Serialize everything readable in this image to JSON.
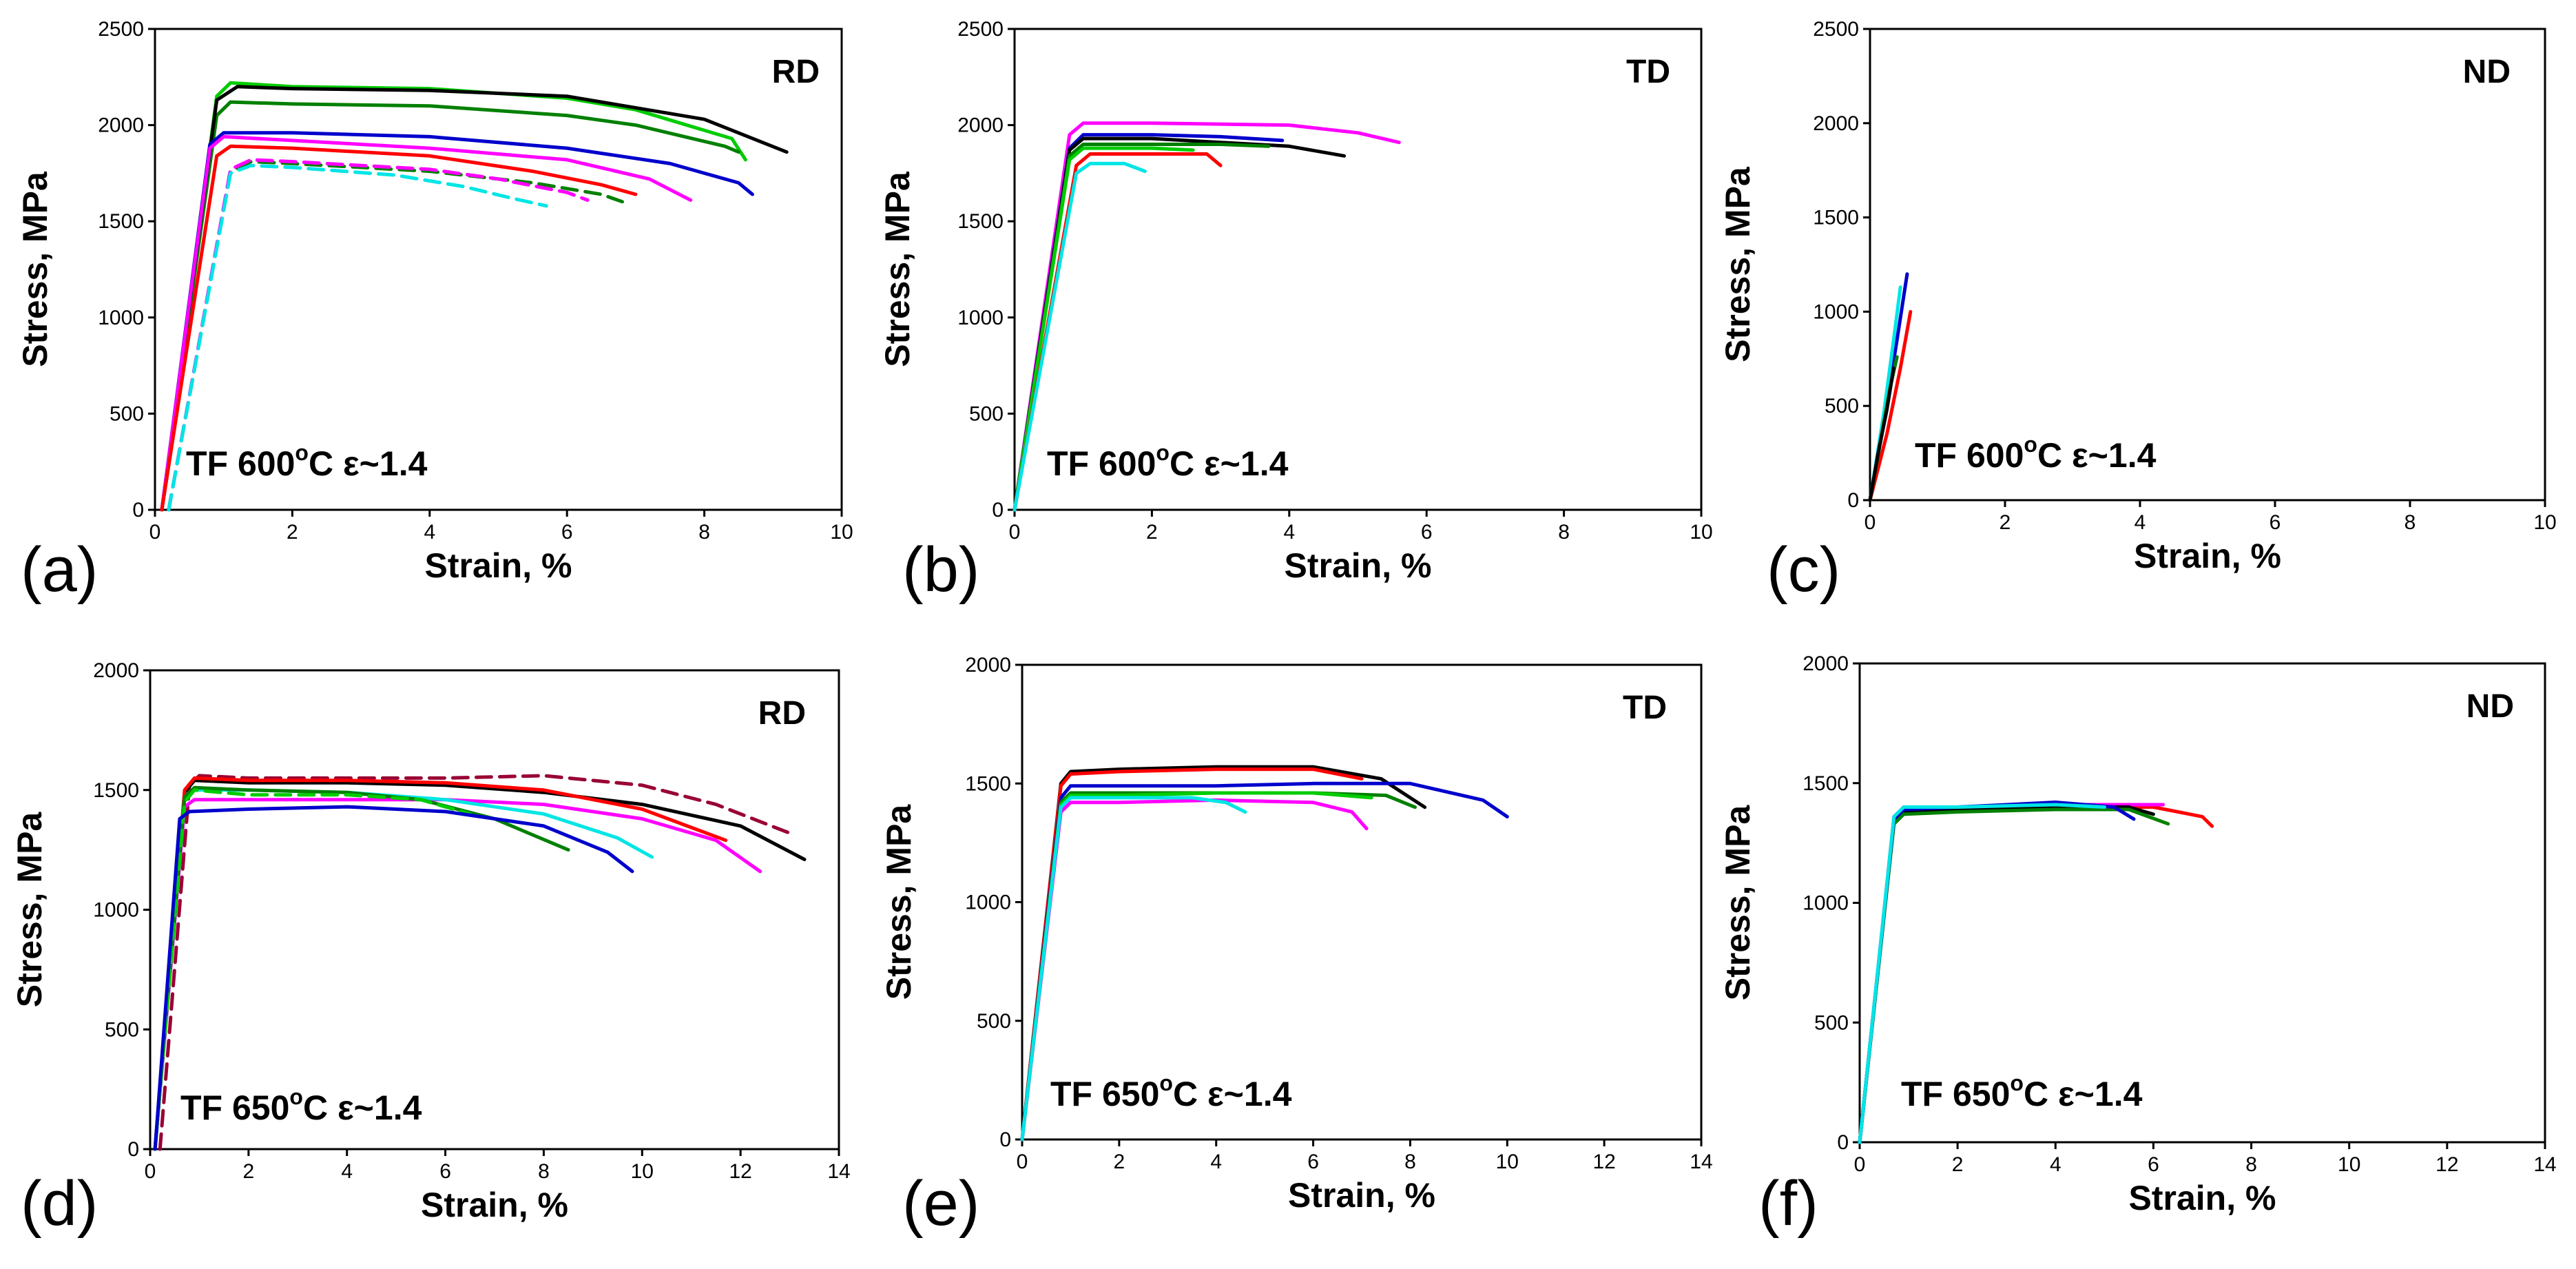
{
  "chart_data": [
    {
      "type": "line",
      "panel_label": "(a)",
      "direction": "RD",
      "condition": {
        "prefix": "TF 600",
        "sup": "o",
        "suffix": "C ε~1.4"
      },
      "xlabel": "Strain, %",
      "ylabel": "Stress, MPa",
      "xlim": [
        0,
        10
      ],
      "ylim": [
        0,
        2500
      ],
      "xticks": [
        0,
        2,
        4,
        6,
        8,
        10
      ],
      "yticks": [
        0,
        500,
        1000,
        1500,
        2000,
        2500
      ],
      "series": [
        {
          "color": "#00cc00",
          "dash": false,
          "x": [
            0.1,
            0.9,
            1.1,
            2,
            4,
            6,
            7,
            8.4,
            8.6
          ],
          "y": [
            0,
            2150,
            2220,
            2200,
            2190,
            2140,
            2080,
            1930,
            1820
          ]
        },
        {
          "color": "#008000",
          "dash": false,
          "x": [
            0.1,
            0.9,
            1.1,
            2,
            4,
            6,
            7,
            8.3,
            8.5
          ],
          "y": [
            0,
            2050,
            2120,
            2110,
            2100,
            2050,
            2000,
            1890,
            1860
          ]
        },
        {
          "color": "#000000",
          "dash": false,
          "x": [
            0.1,
            0.9,
            1.2,
            2,
            4,
            6,
            8,
            9.2
          ],
          "y": [
            0,
            2130,
            2200,
            2190,
            2180,
            2150,
            2030,
            1860
          ]
        },
        {
          "color": "#0000cc",
          "dash": false,
          "x": [
            0.1,
            0.8,
            1.0,
            2,
            4,
            6,
            7.5,
            8.5,
            8.7
          ],
          "y": [
            0,
            1900,
            1960,
            1960,
            1940,
            1880,
            1800,
            1700,
            1640
          ]
        },
        {
          "color": "#ff00ff",
          "dash": false,
          "x": [
            0.1,
            0.8,
            1.0,
            2,
            4,
            6,
            7.2,
            7.8
          ],
          "y": [
            0,
            1880,
            1940,
            1920,
            1880,
            1820,
            1720,
            1610
          ]
        },
        {
          "color": "#ff0000",
          "dash": false,
          "x": [
            0.1,
            0.9,
            1.1,
            2,
            4,
            5.5,
            6.5,
            7.0
          ],
          "y": [
            0,
            1840,
            1890,
            1880,
            1840,
            1760,
            1690,
            1640
          ]
        },
        {
          "color": "#008000",
          "dash": true,
          "x": [
            0.2,
            1.1,
            1.4,
            2,
            4,
            5.5,
            6.5,
            6.9
          ],
          "y": [
            0,
            1760,
            1810,
            1800,
            1760,
            1700,
            1640,
            1590
          ]
        },
        {
          "color": "#ff00ff",
          "dash": true,
          "x": [
            0.2,
            1.1,
            1.4,
            2,
            4,
            5,
            6,
            6.3
          ],
          "y": [
            0,
            1770,
            1820,
            1810,
            1770,
            1720,
            1650,
            1610
          ]
        },
        {
          "color": "#00e5e5",
          "dash": true,
          "x": [
            0.2,
            1.1,
            1.4,
            2,
            3.5,
            4.5,
            5.2,
            5.7
          ],
          "y": [
            0,
            1750,
            1790,
            1780,
            1740,
            1680,
            1620,
            1580
          ]
        }
      ]
    },
    {
      "type": "line",
      "panel_label": "(b)",
      "direction": "TD",
      "condition": {
        "prefix": "TF 600",
        "sup": "o",
        "suffix": "C ε~1.4"
      },
      "xlabel": "Strain, %",
      "ylabel": "Stress, MPa",
      "xlim": [
        0,
        10
      ],
      "ylim": [
        0,
        2500
      ],
      "xticks": [
        0,
        2,
        4,
        6,
        8,
        10
      ],
      "yticks": [
        0,
        500,
        1000,
        1500,
        2000,
        2500
      ],
      "series": [
        {
          "color": "#ff00ff",
          "dash": false,
          "x": [
            0,
            0.8,
            1.0,
            2,
            4,
            5,
            5.6
          ],
          "y": [
            0,
            1950,
            2010,
            2010,
            2000,
            1960,
            1910
          ]
        },
        {
          "color": "#0000cc",
          "dash": false,
          "x": [
            0,
            0.8,
            1.0,
            2,
            3,
            3.9
          ],
          "y": [
            0,
            1880,
            1950,
            1950,
            1940,
            1920
          ]
        },
        {
          "color": "#000000",
          "dash": false,
          "x": [
            0,
            0.8,
            1.0,
            2,
            3,
            4.0,
            4.8
          ],
          "y": [
            0,
            1870,
            1930,
            1930,
            1910,
            1890,
            1840
          ]
        },
        {
          "color": "#008000",
          "dash": false,
          "x": [
            0,
            0.8,
            1.0,
            2,
            3,
            3.7
          ],
          "y": [
            0,
            1840,
            1900,
            1900,
            1900,
            1890
          ]
        },
        {
          "color": "#00cc00",
          "dash": false,
          "x": [
            0,
            0.8,
            1.0,
            2,
            2.6
          ],
          "y": [
            0,
            1820,
            1880,
            1880,
            1870
          ]
        },
        {
          "color": "#ff0000",
          "dash": false,
          "x": [
            0,
            0.9,
            1.1,
            2,
            2.8,
            3.0
          ],
          "y": [
            0,
            1790,
            1850,
            1850,
            1850,
            1790
          ]
        },
        {
          "color": "#00e5e5",
          "dash": false,
          "x": [
            0,
            0.9,
            1.1,
            1.6,
            1.9
          ],
          "y": [
            0,
            1750,
            1800,
            1800,
            1760
          ]
        }
      ]
    },
    {
      "type": "line",
      "panel_label": "(c)",
      "direction": "ND",
      "condition": {
        "prefix": "TF 600",
        "sup": "o",
        "suffix": "C ε~1.4"
      },
      "xlabel": "Strain, %",
      "ylabel": "Stress, MPa",
      "xlim": [
        0,
        10
      ],
      "ylim": [
        0,
        2500
      ],
      "xticks": [
        0,
        2,
        4,
        6,
        8,
        10
      ],
      "yticks": [
        0,
        500,
        1000,
        1500,
        2000,
        2500
      ],
      "series": [
        {
          "color": "#0000cc",
          "dash": false,
          "x": [
            0,
            0.2,
            0.4,
            0.55
          ],
          "y": [
            0,
            400,
            850,
            1200
          ]
        },
        {
          "color": "#00e5e5",
          "dash": false,
          "x": [
            0,
            0.2,
            0.35,
            0.45
          ],
          "y": [
            0,
            450,
            850,
            1130
          ]
        },
        {
          "color": "#ff0000",
          "dash": false,
          "x": [
            0,
            0.25,
            0.45,
            0.6
          ],
          "y": [
            0,
            350,
            700,
            1000
          ]
        },
        {
          "color": "#008000",
          "dash": false,
          "x": [
            0,
            0.15,
            0.3,
            0.4
          ],
          "y": [
            0,
            300,
            600,
            760
          ]
        },
        {
          "color": "#000000",
          "dash": false,
          "x": [
            0,
            0.12,
            0.25,
            0.35
          ],
          "y": [
            0,
            250,
            480,
            700
          ]
        }
      ]
    },
    {
      "type": "line",
      "panel_label": "(d)",
      "direction": "RD",
      "condition": {
        "prefix": "TF 650",
        "sup": "o",
        "suffix": "C ε~1.4"
      },
      "xlabel": "Strain, %",
      "ylabel": "Stress, MPa",
      "xlim": [
        0,
        14
      ],
      "ylim": [
        0,
        2000
      ],
      "xticks": [
        0,
        2,
        4,
        6,
        8,
        10,
        12,
        14
      ],
      "yticks": [
        0,
        500,
        1000,
        1500,
        2000
      ],
      "series": [
        {
          "color": "#990033",
          "dash": true,
          "x": [
            0.2,
            0.8,
            1.0,
            2,
            4,
            6,
            8,
            10,
            11.5,
            13.0
          ],
          "y": [
            0,
            1520,
            1560,
            1550,
            1550,
            1550,
            1560,
            1520,
            1440,
            1320
          ]
        },
        {
          "color": "#000000",
          "dash": false,
          "x": [
            0.1,
            0.7,
            0.9,
            2,
            4,
            6,
            8,
            10,
            12,
            13.3
          ],
          "y": [
            0,
            1490,
            1540,
            1530,
            1530,
            1520,
            1490,
            1440,
            1350,
            1210
          ]
        },
        {
          "color": "#ff0000",
          "dash": false,
          "x": [
            0.1,
            0.7,
            0.9,
            2,
            4,
            6,
            8,
            10,
            11.7
          ],
          "y": [
            0,
            1500,
            1550,
            1540,
            1540,
            1530,
            1500,
            1420,
            1290
          ]
        },
        {
          "color": "#ff00ff",
          "dash": false,
          "x": [
            0.1,
            0.7,
            0.9,
            2,
            4,
            6,
            8,
            10,
            11.5,
            12.4
          ],
          "y": [
            0,
            1430,
            1460,
            1460,
            1460,
            1460,
            1440,
            1380,
            1290,
            1160
          ]
        },
        {
          "color": "#00e5e5",
          "dash": false,
          "x": [
            0.1,
            0.7,
            0.9,
            2,
            4,
            6,
            8,
            9.5,
            10.2
          ],
          "y": [
            0,
            1470,
            1500,
            1500,
            1490,
            1460,
            1400,
            1300,
            1220
          ]
        },
        {
          "color": "#008000",
          "dash": false,
          "x": [
            0.1,
            0.7,
            0.9,
            2,
            4,
            5.5,
            7,
            8.5
          ],
          "y": [
            0,
            1470,
            1510,
            1500,
            1490,
            1460,
            1380,
            1250
          ]
        },
        {
          "color": "#00cc00",
          "dash": true,
          "x": [
            0.1,
            0.7,
            0.9,
            2,
            4,
            5.5,
            6.5
          ],
          "y": [
            0,
            1450,
            1500,
            1480,
            1480,
            1460,
            1400
          ]
        },
        {
          "color": "#0000cc",
          "dash": false,
          "x": [
            0.1,
            0.6,
            0.8,
            2,
            4,
            6,
            8,
            9.3,
            9.8
          ],
          "y": [
            0,
            1380,
            1410,
            1420,
            1430,
            1410,
            1350,
            1240,
            1160
          ]
        }
      ]
    },
    {
      "type": "line",
      "panel_label": "(e)",
      "direction": "TD",
      "condition": {
        "prefix": "TF 650",
        "sup": "o",
        "suffix": "C ε~1.4"
      },
      "xlabel": "Strain, %",
      "ylabel": "Stress, MPa",
      "xlim": [
        0,
        14
      ],
      "ylim": [
        0,
        2000
      ],
      "xticks": [
        0,
        2,
        4,
        6,
        8,
        10,
        12,
        14
      ],
      "yticks": [
        0,
        500,
        1000,
        1500,
        2000
      ],
      "series": [
        {
          "color": "#000000",
          "dash": false,
          "x": [
            0,
            0.8,
            1.0,
            2,
            4,
            6,
            7.4,
            8.3
          ],
          "y": [
            0,
            1500,
            1550,
            1560,
            1570,
            1570,
            1520,
            1400
          ]
        },
        {
          "color": "#ff0000",
          "dash": false,
          "x": [
            0,
            0.8,
            1.0,
            2,
            4,
            6,
            7.0
          ],
          "y": [
            0,
            1490,
            1540,
            1550,
            1560,
            1560,
            1520
          ]
        },
        {
          "color": "#0000cc",
          "dash": false,
          "x": [
            0,
            0.8,
            1.0,
            2,
            4,
            6,
            8,
            9.5,
            10.0
          ],
          "y": [
            0,
            1440,
            1490,
            1490,
            1490,
            1500,
            1500,
            1430,
            1360
          ]
        },
        {
          "color": "#008000",
          "dash": false,
          "x": [
            0,
            0.8,
            1.0,
            2,
            4,
            6,
            7.5,
            8.1
          ],
          "y": [
            0,
            1420,
            1460,
            1460,
            1460,
            1460,
            1450,
            1400
          ]
        },
        {
          "color": "#00cc00",
          "dash": false,
          "x": [
            0,
            0.8,
            1.0,
            2,
            4,
            6,
            7.2
          ],
          "y": [
            0,
            1410,
            1450,
            1450,
            1460,
            1460,
            1440
          ]
        },
        {
          "color": "#ff00ff",
          "dash": false,
          "x": [
            0,
            0.8,
            1.0,
            2,
            4,
            6,
            6.8,
            7.1
          ],
          "y": [
            0,
            1380,
            1420,
            1420,
            1430,
            1420,
            1380,
            1310
          ]
        },
        {
          "color": "#00e5e5",
          "dash": false,
          "x": [
            0,
            0.8,
            1.0,
            2,
            3.5,
            4.2,
            4.6
          ],
          "y": [
            0,
            1400,
            1440,
            1440,
            1440,
            1420,
            1380
          ]
        }
      ]
    },
    {
      "type": "line",
      "panel_label": "(f)",
      "direction": "ND",
      "condition": {
        "prefix": "TF 650",
        "sup": "o",
        "suffix": "C ε~1.4"
      },
      "xlabel": "Strain, %",
      "ylabel": "Stress, MPa",
      "xlim": [
        0,
        14
      ],
      "ylim": [
        0,
        2000
      ],
      "xticks": [
        0,
        2,
        4,
        6,
        8,
        10,
        12,
        14
      ],
      "yticks": [
        0,
        500,
        1000,
        1500,
        2000
      ],
      "series": [
        {
          "color": "#ff0000",
          "dash": false,
          "x": [
            0,
            0.7,
            0.9,
            2,
            4,
            6,
            7.0,
            7.2
          ],
          "y": [
            0,
            1350,
            1390,
            1390,
            1400,
            1400,
            1360,
            1320
          ]
        },
        {
          "color": "#ff00ff",
          "dash": false,
          "x": [
            0,
            0.7,
            0.9,
            2,
            4,
            6.2
          ],
          "y": [
            0,
            1360,
            1400,
            1400,
            1410,
            1410
          ]
        },
        {
          "color": "#000000",
          "dash": false,
          "x": [
            0,
            0.7,
            0.9,
            2,
            4,
            5.5,
            6.0
          ],
          "y": [
            0,
            1340,
            1380,
            1390,
            1400,
            1400,
            1370
          ]
        },
        {
          "color": "#008000",
          "dash": false,
          "x": [
            0,
            0.7,
            0.9,
            2,
            4,
            5.5,
            6.3
          ],
          "y": [
            0,
            1330,
            1370,
            1380,
            1390,
            1390,
            1330
          ]
        },
        {
          "color": "#0000cc",
          "dash": false,
          "x": [
            0,
            0.7,
            0.9,
            2,
            4,
            5.2,
            5.6
          ],
          "y": [
            0,
            1350,
            1390,
            1400,
            1420,
            1400,
            1350
          ]
        },
        {
          "color": "#00e5e5",
          "dash": false,
          "x": [
            0,
            0.7,
            0.9,
            2,
            4,
            5.0
          ],
          "y": [
            0,
            1360,
            1400,
            1400,
            1410,
            1400
          ]
        }
      ]
    }
  ]
}
